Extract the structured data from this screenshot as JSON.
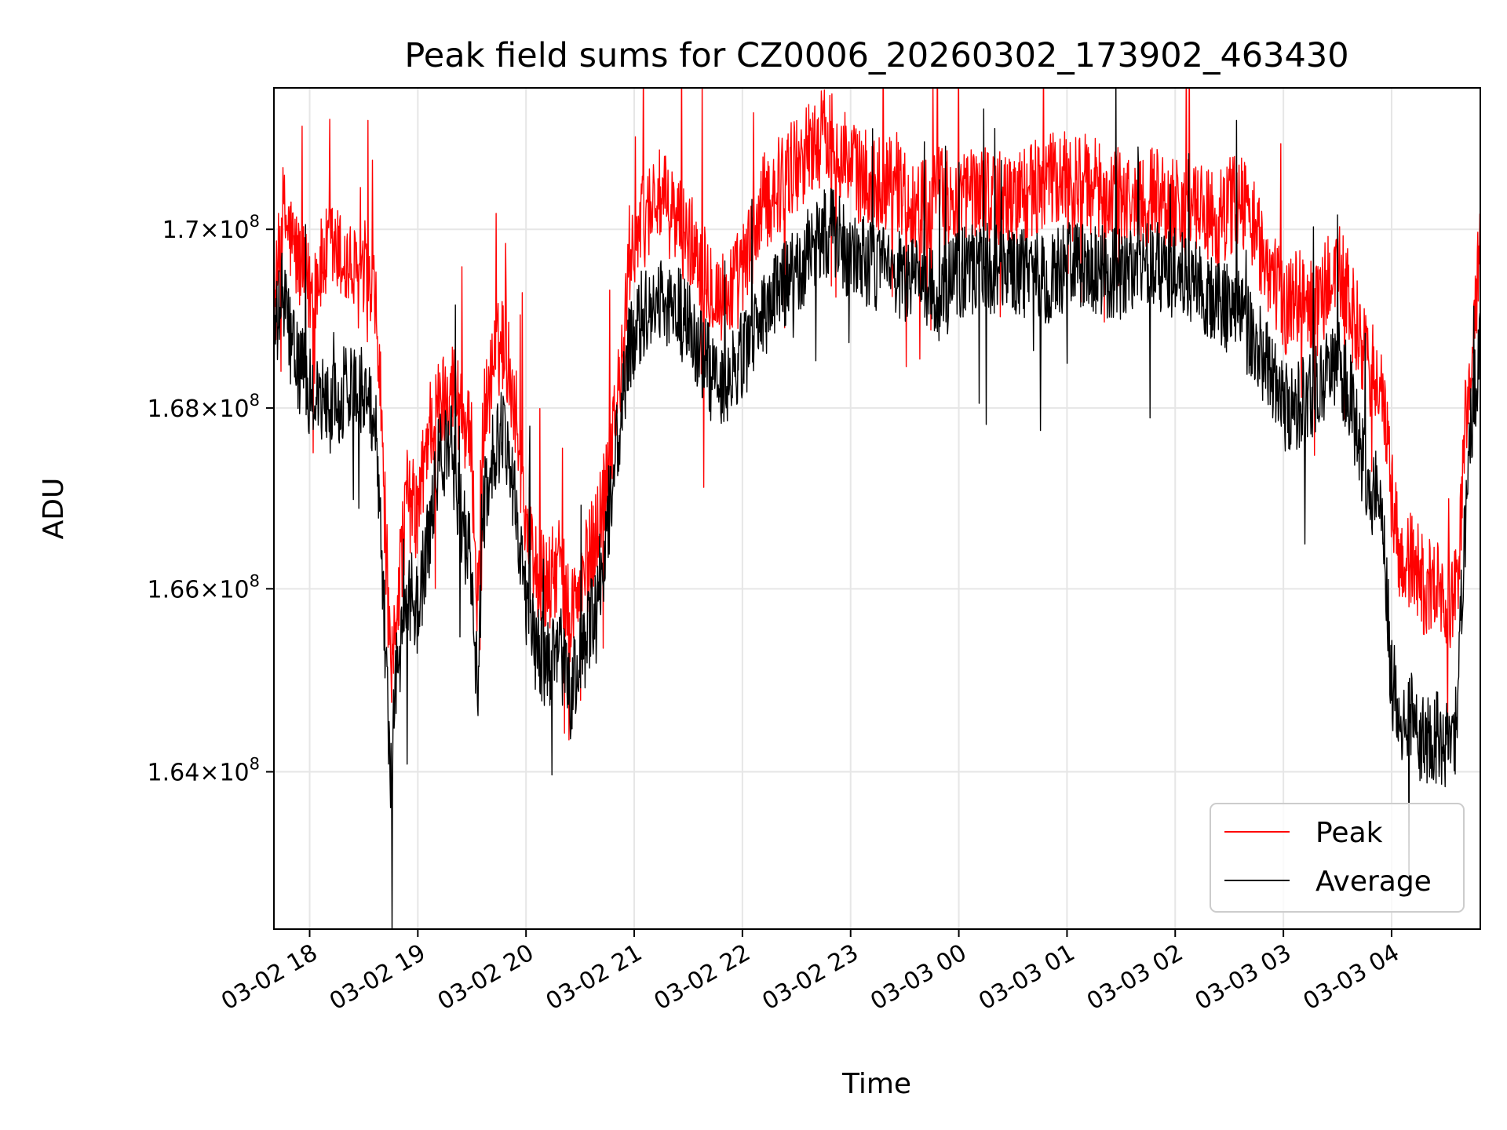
{
  "chart_data": {
    "type": "line",
    "title": "Peak field sums for CZ0006_20260302_173902_463430",
    "xlabel": "Time",
    "ylabel": "ADU",
    "x_axis": {
      "unit": "hours since 03-02 18:00",
      "range": [
        -0.33,
        10.82
      ],
      "ticks": [
        {
          "value": 0,
          "label": "03-02 18"
        },
        {
          "value": 1,
          "label": "03-02 19"
        },
        {
          "value": 2,
          "label": "03-02 20"
        },
        {
          "value": 3,
          "label": "03-02 21"
        },
        {
          "value": 4,
          "label": "03-02 22"
        },
        {
          "value": 5,
          "label": "03-02 23"
        },
        {
          "value": 6,
          "label": "03-03 00"
        },
        {
          "value": 7,
          "label": "03-03 01"
        },
        {
          "value": 8,
          "label": "03-03 02"
        },
        {
          "value": 9,
          "label": "03-03 03"
        },
        {
          "value": 10,
          "label": "03-03 04"
        }
      ]
    },
    "y_axis": {
      "scale": "log",
      "range": [
        162300000,
        171600000
      ],
      "ticks": [
        {
          "value": 164000000,
          "mantissa": "1.64",
          "exponent": "8"
        },
        {
          "value": 166000000,
          "mantissa": "1.66",
          "exponent": "8"
        },
        {
          "value": 168000000,
          "mantissa": "1.68",
          "exponent": "8"
        },
        {
          "value": 170000000,
          "mantissa": "1.7",
          "exponent": "8"
        }
      ]
    },
    "grid": true,
    "legend": {
      "placement": "lower-right",
      "entries": [
        "Peak",
        "Average"
      ]
    },
    "series": [
      {
        "name": "Peak",
        "color": "#ff0000",
        "noise": 700000,
        "points": [
          [
            -0.33,
            169000000
          ],
          [
            -0.25,
            170200000
          ],
          [
            -0.15,
            169800000
          ],
          [
            0.0,
            169300000
          ],
          [
            0.2,
            169800000
          ],
          [
            0.4,
            169500000
          ],
          [
            0.6,
            169200000
          ],
          [
            0.65,
            168300000
          ],
          [
            0.72,
            166000000
          ],
          [
            0.75,
            164800000
          ],
          [
            0.8,
            165800000
          ],
          [
            0.9,
            167000000
          ],
          [
            1.0,
            166800000
          ],
          [
            1.1,
            167800000
          ],
          [
            1.2,
            168000000
          ],
          [
            1.3,
            168300000
          ],
          [
            1.4,
            168000000
          ],
          [
            1.5,
            167500000
          ],
          [
            1.55,
            165800000
          ],
          [
            1.6,
            167800000
          ],
          [
            1.7,
            168500000
          ],
          [
            1.8,
            168800000
          ],
          [
            1.9,
            168000000
          ],
          [
            2.0,
            166800000
          ],
          [
            2.1,
            166200000
          ],
          [
            2.2,
            166000000
          ],
          [
            2.3,
            166300000
          ],
          [
            2.4,
            165700000
          ],
          [
            2.5,
            166000000
          ],
          [
            2.6,
            166400000
          ],
          [
            2.7,
            166900000
          ],
          [
            2.8,
            167800000
          ],
          [
            2.9,
            168500000
          ],
          [
            2.95,
            169700000
          ],
          [
            3.05,
            170000000
          ],
          [
            3.2,
            170400000
          ],
          [
            3.4,
            170100000
          ],
          [
            3.6,
            169700000
          ],
          [
            3.8,
            169200000
          ],
          [
            4.0,
            169500000
          ],
          [
            4.2,
            170300000
          ],
          [
            4.4,
            170600000
          ],
          [
            4.6,
            170900000
          ],
          [
            4.8,
            171100000
          ],
          [
            5.0,
            170700000
          ],
          [
            5.2,
            170500000
          ],
          [
            5.4,
            170600000
          ],
          [
            5.6,
            170200000
          ],
          [
            5.8,
            170400000
          ],
          [
            6.0,
            170300000
          ],
          [
            6.2,
            170500000
          ],
          [
            6.4,
            170300000
          ],
          [
            6.6,
            170400000
          ],
          [
            6.8,
            170500000
          ],
          [
            7.0,
            170600000
          ],
          [
            7.2,
            170500000
          ],
          [
            7.4,
            170400000
          ],
          [
            7.6,
            170300000
          ],
          [
            7.8,
            170400000
          ],
          [
            8.0,
            170300000
          ],
          [
            8.2,
            170200000
          ],
          [
            8.4,
            170100000
          ],
          [
            8.6,
            170400000
          ],
          [
            8.8,
            169800000
          ],
          [
            9.0,
            169100000
          ],
          [
            9.1,
            169300000
          ],
          [
            9.3,
            169100000
          ],
          [
            9.5,
            169600000
          ],
          [
            9.6,
            169200000
          ],
          [
            9.7,
            168800000
          ],
          [
            9.8,
            168400000
          ],
          [
            9.9,
            168300000
          ],
          [
            10.0,
            167000000
          ],
          [
            10.1,
            166200000
          ],
          [
            10.2,
            166300000
          ],
          [
            10.3,
            166000000
          ],
          [
            10.4,
            166100000
          ],
          [
            10.5,
            165800000
          ],
          [
            10.6,
            165900000
          ],
          [
            10.7,
            168200000
          ],
          [
            10.82,
            169700000
          ]
        ]
      },
      {
        "name": "Average",
        "color": "#000000",
        "noise": 650000,
        "points": [
          [
            -0.33,
            168700000
          ],
          [
            -0.25,
            169300000
          ],
          [
            -0.15,
            168600000
          ],
          [
            0.0,
            168200000
          ],
          [
            0.2,
            168000000
          ],
          [
            0.4,
            168300000
          ],
          [
            0.6,
            168000000
          ],
          [
            0.65,
            167000000
          ],
          [
            0.72,
            164800000
          ],
          [
            0.75,
            163900000
          ],
          [
            0.8,
            165000000
          ],
          [
            0.9,
            166000000
          ],
          [
            1.0,
            165800000
          ],
          [
            1.1,
            166500000
          ],
          [
            1.2,
            167500000
          ],
          [
            1.3,
            167600000
          ],
          [
            1.4,
            166800000
          ],
          [
            1.5,
            166200000
          ],
          [
            1.55,
            164800000
          ],
          [
            1.6,
            166800000
          ],
          [
            1.7,
            167500000
          ],
          [
            1.8,
            167800000
          ],
          [
            1.9,
            167000000
          ],
          [
            2.0,
            165800000
          ],
          [
            2.1,
            165300000
          ],
          [
            2.2,
            165200000
          ],
          [
            2.3,
            165400000
          ],
          [
            2.4,
            164800000
          ],
          [
            2.5,
            165200000
          ],
          [
            2.6,
            165600000
          ],
          [
            2.7,
            166200000
          ],
          [
            2.8,
            167200000
          ],
          [
            2.9,
            168100000
          ],
          [
            2.95,
            168600000
          ],
          [
            3.05,
            169000000
          ],
          [
            3.2,
            169200000
          ],
          [
            3.4,
            169100000
          ],
          [
            3.6,
            168700000
          ],
          [
            3.8,
            168100000
          ],
          [
            4.0,
            168600000
          ],
          [
            4.2,
            169000000
          ],
          [
            4.4,
            169400000
          ],
          [
            4.6,
            169700000
          ],
          [
            4.8,
            170000000
          ],
          [
            5.0,
            169700000
          ],
          [
            5.2,
            169600000
          ],
          [
            5.4,
            169500000
          ],
          [
            5.6,
            169400000
          ],
          [
            5.8,
            169200000
          ],
          [
            6.0,
            169500000
          ],
          [
            6.2,
            169600000
          ],
          [
            6.4,
            169500000
          ],
          [
            6.6,
            169500000
          ],
          [
            6.8,
            169400000
          ],
          [
            7.0,
            169600000
          ],
          [
            7.2,
            169600000
          ],
          [
            7.4,
            169500000
          ],
          [
            7.6,
            169500000
          ],
          [
            7.8,
            169600000
          ],
          [
            8.0,
            169500000
          ],
          [
            8.2,
            169400000
          ],
          [
            8.4,
            169200000
          ],
          [
            8.6,
            169000000
          ],
          [
            8.8,
            168600000
          ],
          [
            9.0,
            168000000
          ],
          [
            9.1,
            168000000
          ],
          [
            9.3,
            168200000
          ],
          [
            9.5,
            168500000
          ],
          [
            9.6,
            168200000
          ],
          [
            9.7,
            167600000
          ],
          [
            9.8,
            167100000
          ],
          [
            9.9,
            167000000
          ],
          [
            10.0,
            165000000
          ],
          [
            10.1,
            164600000
          ],
          [
            10.2,
            164600000
          ],
          [
            10.3,
            164300000
          ],
          [
            10.4,
            164400000
          ],
          [
            10.5,
            164300000
          ],
          [
            10.6,
            164500000
          ],
          [
            10.7,
            167300000
          ],
          [
            10.82,
            168800000
          ]
        ]
      }
    ]
  }
}
